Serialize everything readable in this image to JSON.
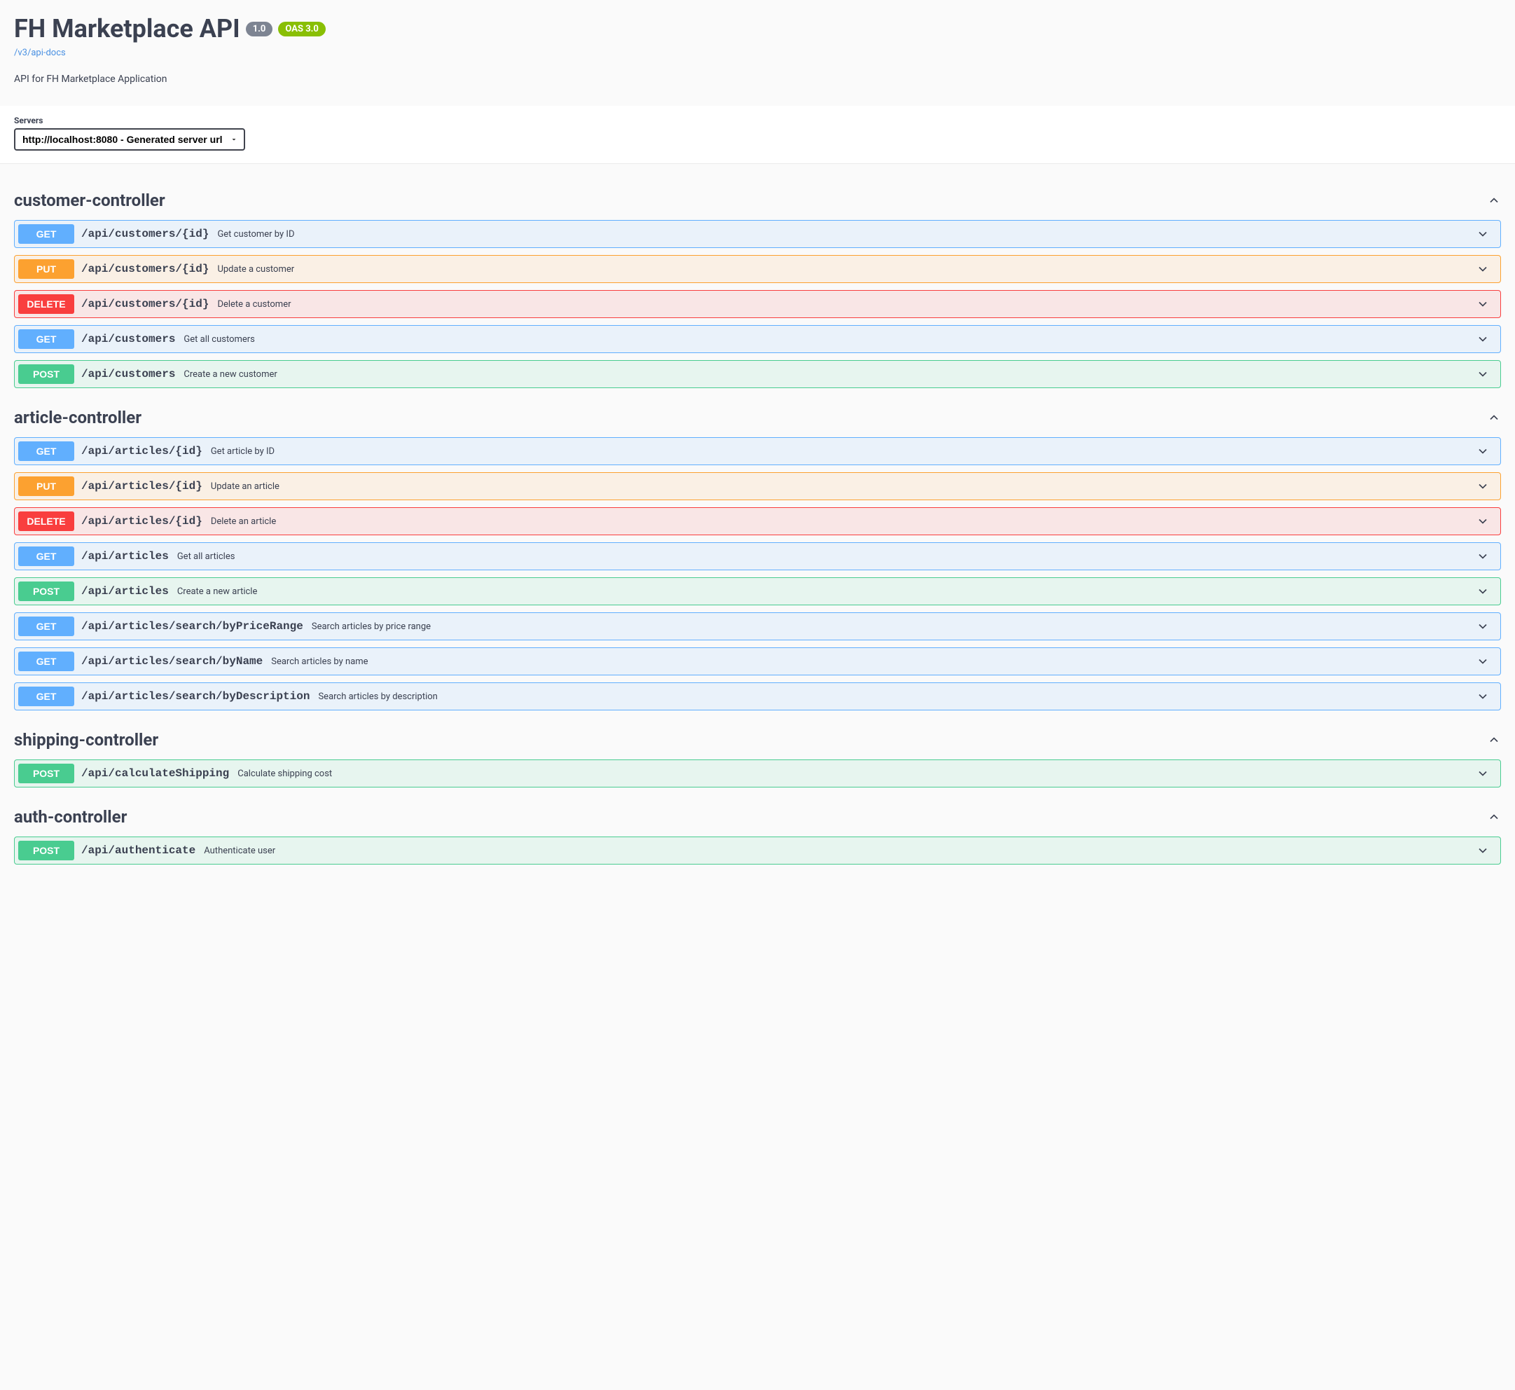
{
  "header": {
    "title": "FH Marketplace API",
    "version": "1.0",
    "oas": "OAS 3.0",
    "docsLink": "/v3/api-docs",
    "description": "API for FH Marketplace Application"
  },
  "servers": {
    "label": "Servers",
    "selected": "http://localhost:8080 - Generated server url"
  },
  "methodColors": {
    "GET": {
      "bg": "#61affe",
      "rowBg": "rgba(97,175,254,0.1)",
      "border": "#61affe"
    },
    "POST": {
      "bg": "#49cc90",
      "rowBg": "rgba(73,204,144,0.1)",
      "border": "#49cc90"
    },
    "PUT": {
      "bg": "#fca130",
      "rowBg": "rgba(252,161,48,0.1)",
      "border": "#fca130"
    },
    "DELETE": {
      "bg": "#f93e3e",
      "rowBg": "rgba(249,62,62,0.1)",
      "border": "#f93e3e"
    }
  },
  "tags": [
    {
      "name": "customer-controller",
      "ops": [
        {
          "method": "GET",
          "path": "/api/customers/{id}",
          "summary": "Get customer by ID"
        },
        {
          "method": "PUT",
          "path": "/api/customers/{id}",
          "summary": "Update a customer"
        },
        {
          "method": "DELETE",
          "path": "/api/customers/{id}",
          "summary": "Delete a customer"
        },
        {
          "method": "GET",
          "path": "/api/customers",
          "summary": "Get all customers"
        },
        {
          "method": "POST",
          "path": "/api/customers",
          "summary": "Create a new customer"
        }
      ]
    },
    {
      "name": "article-controller",
      "ops": [
        {
          "method": "GET",
          "path": "/api/articles/{id}",
          "summary": "Get article by ID"
        },
        {
          "method": "PUT",
          "path": "/api/articles/{id}",
          "summary": "Update an article"
        },
        {
          "method": "DELETE",
          "path": "/api/articles/{id}",
          "summary": "Delete an article"
        },
        {
          "method": "GET",
          "path": "/api/articles",
          "summary": "Get all articles"
        },
        {
          "method": "POST",
          "path": "/api/articles",
          "summary": "Create a new article"
        },
        {
          "method": "GET",
          "path": "/api/articles/search/byPriceRange",
          "summary": "Search articles by price range"
        },
        {
          "method": "GET",
          "path": "/api/articles/search/byName",
          "summary": "Search articles by name"
        },
        {
          "method": "GET",
          "path": "/api/articles/search/byDescription",
          "summary": "Search articles by description"
        }
      ]
    },
    {
      "name": "shipping-controller",
      "ops": [
        {
          "method": "POST",
          "path": "/api/calculateShipping",
          "summary": "Calculate shipping cost"
        }
      ]
    },
    {
      "name": "auth-controller",
      "ops": [
        {
          "method": "POST",
          "path": "/api/authenticate",
          "summary": "Authenticate user"
        }
      ]
    }
  ]
}
